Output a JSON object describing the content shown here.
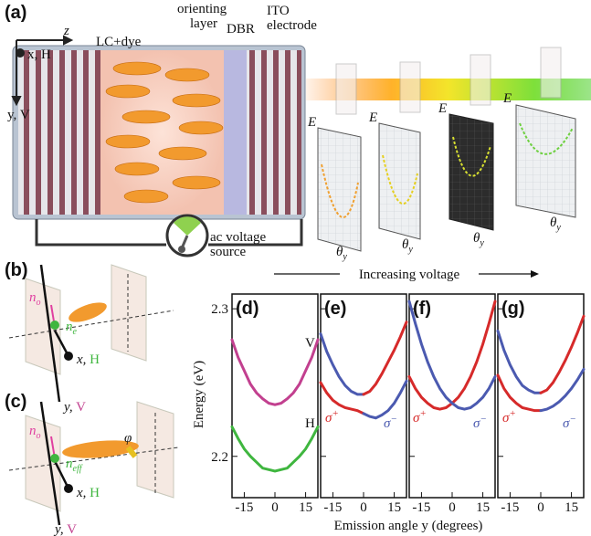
{
  "figure": {
    "increasing_voltage": "Increasing voltage",
    "y_label": "Energy (eV)",
    "x_label": "Emission angle y (degrees)"
  },
  "panel_a": {
    "label": "(a)",
    "z": "z",
    "x_axis": "x, H",
    "y_axis": "y, V",
    "lc_dye": "LC+dye",
    "orienting_layer": [
      "orienting",
      "layer"
    ],
    "dbr": "DBR",
    "ito": [
      "ITO",
      "electrode"
    ],
    "source": [
      "ac voltage",
      "source"
    ],
    "e_labels": [
      "E",
      "E",
      "E",
      "E"
    ],
    "theta": [
      {
        "base": "θ",
        "sub": "y"
      },
      {
        "base": "θ",
        "sub": "y"
      },
      {
        "base": "θ",
        "sub": "y"
      },
      {
        "base": "θ",
        "sub": "y"
      }
    ]
  },
  "panel_b": {
    "label": "(b)",
    "n_o": {
      "base": "n",
      "sub": "o"
    },
    "n_e": {
      "base": "n",
      "sub": "e"
    },
    "x_axis": {
      "var": "x,",
      "pol": "H"
    },
    "y_axis": {
      "var": "y,",
      "pol": "V"
    }
  },
  "panel_c": {
    "label": "(c)",
    "n_o": {
      "base": "n",
      "sub": "o"
    },
    "n_eff": {
      "base": "n",
      "sub": "eff"
    },
    "phi": "φ",
    "x_axis": {
      "var": "x,",
      "pol": "H"
    },
    "y_axis": {
      "var": "y,",
      "pol": "V"
    }
  },
  "chart_data": [
    {
      "type": "line",
      "title": "(d)",
      "x": [
        -21,
        -18,
        -15,
        -12,
        -9,
        -6,
        -3,
        0,
        3,
        6,
        9,
        12,
        15,
        18,
        21
      ],
      "xlim": [
        -21,
        21
      ],
      "xticks": [
        -15,
        0,
        15
      ],
      "ylim": [
        2.172,
        2.31
      ],
      "yticks": [
        2.2,
        2.3
      ],
      "series": [
        {
          "color": "#c2408f",
          "values": [
            2.279,
            2.267,
            2.258,
            2.249,
            2.243,
            2.239,
            2.236,
            2.235,
            2.236,
            2.239,
            2.243,
            2.249,
            2.258,
            2.267,
            2.279
          ]
        },
        {
          "color": "#3fb63f",
          "values": [
            2.22,
            2.212,
            2.205,
            2.2,
            2.196,
            2.192,
            2.191,
            2.19,
            2.191,
            2.192,
            2.196,
            2.2,
            2.205,
            2.212,
            2.22
          ]
        }
      ],
      "annotations": [
        {
          "text": "V",
          "color": "#c2408f"
        },
        {
          "text": "H",
          "color": "#3fb63f"
        }
      ]
    },
    {
      "type": "line",
      "title": "(e)",
      "x": [
        -21,
        -18,
        -15,
        -12,
        -9,
        -6,
        -3,
        0,
        3,
        6,
        9,
        12,
        15,
        18,
        21
      ],
      "xlim": [
        -21,
        21
      ],
      "xticks": [
        -15,
        0,
        15
      ],
      "ylim": [
        2.172,
        2.31
      ],
      "yticks": [
        2.2,
        2.3
      ],
      "series": [
        {
          "color": "#4b5ab0",
          "values": [
            2.283,
            2.271,
            2.262,
            2.254,
            2.248,
            2.244,
            2.242,
            2.242,
            null,
            null,
            null,
            null,
            null,
            null,
            null
          ]
        },
        {
          "color": "#d62a2a",
          "values": [
            null,
            null,
            null,
            null,
            null,
            null,
            null,
            2.242,
            2.244,
            2.249,
            2.256,
            2.264,
            2.272,
            2.281,
            2.291
          ]
        },
        {
          "color": "#d62a2a",
          "values": [
            2.25,
            2.243,
            2.238,
            2.235,
            2.233,
            2.232,
            2.231,
            2.229,
            null,
            null,
            null,
            null,
            null,
            null,
            null
          ]
        },
        {
          "color": "#4b5ab0",
          "values": [
            null,
            null,
            null,
            null,
            null,
            null,
            null,
            2.229,
            2.227,
            2.226,
            2.228,
            2.231,
            2.236,
            2.243,
            2.251
          ]
        }
      ],
      "annotations": [
        {
          "base": "σ",
          "sup": "+",
          "color": "#d62a2a"
        },
        {
          "base": "σ",
          "sup": "−",
          "color": "#4b5ab0"
        }
      ]
    },
    {
      "type": "line",
      "title": "(f)",
      "x": [
        -21,
        -18,
        -15,
        -12,
        -9,
        -6,
        -3,
        0,
        3,
        6,
        9,
        12,
        15,
        18,
        21
      ],
      "xlim": [
        -21,
        21
      ],
      "xticks": [
        -15,
        0,
        15
      ],
      "ylim": [
        2.172,
        2.31
      ],
      "yticks": [
        2.2,
        2.3
      ],
      "series": [
        {
          "color": "#d62a2a",
          "values": [
            2.254,
            2.246,
            2.24,
            2.236,
            2.233,
            2.232,
            2.233,
            2.236,
            2.24,
            2.246,
            2.254,
            2.264,
            2.276,
            2.29,
            2.305
          ]
        },
        {
          "color": "#4b5ab0",
          "values": [
            2.305,
            2.29,
            2.276,
            2.264,
            2.254,
            2.246,
            2.24,
            2.236,
            2.233,
            2.232,
            2.233,
            2.236,
            2.24,
            2.246,
            2.254
          ]
        }
      ],
      "annotations": [
        {
          "base": "σ",
          "sup": "+",
          "color": "#d62a2a"
        },
        {
          "base": "σ",
          "sup": "−",
          "color": "#4b5ab0"
        }
      ]
    },
    {
      "type": "line",
      "title": "(g)",
      "x": [
        -21,
        -18,
        -15,
        -12,
        -9,
        -6,
        -3,
        0,
        3,
        6,
        9,
        12,
        15,
        18,
        21
      ],
      "xlim": [
        -21,
        21
      ],
      "xticks": [
        -15,
        0,
        15
      ],
      "ylim": [
        2.172,
        2.31
      ],
      "yticks": [
        2.2,
        2.3
      ],
      "series": [
        {
          "color": "#4b5ab0",
          "values": [
            2.285,
            2.272,
            2.262,
            2.254,
            2.248,
            2.245,
            2.243,
            2.243,
            null,
            null,
            null,
            null,
            null,
            null,
            null
          ]
        },
        {
          "color": "#d62a2a",
          "values": [
            null,
            null,
            null,
            null,
            null,
            null,
            null,
            2.243,
            2.245,
            2.25,
            2.257,
            2.265,
            2.274,
            2.284,
            2.295
          ]
        },
        {
          "color": "#d62a2a",
          "values": [
            2.255,
            2.246,
            2.24,
            2.236,
            2.233,
            2.232,
            2.231,
            2.231,
            null,
            null,
            null,
            null,
            null,
            null,
            null
          ]
        },
        {
          "color": "#4b5ab0",
          "values": [
            null,
            null,
            null,
            null,
            null,
            null,
            null,
            2.231,
            2.232,
            2.234,
            2.237,
            2.241,
            2.246,
            2.252,
            2.259
          ]
        }
      ],
      "annotations": [
        {
          "base": "σ",
          "sup": "+",
          "color": "#d62a2a"
        },
        {
          "base": "σ",
          "sup": "−",
          "color": "#4b5ab0"
        }
      ]
    }
  ]
}
